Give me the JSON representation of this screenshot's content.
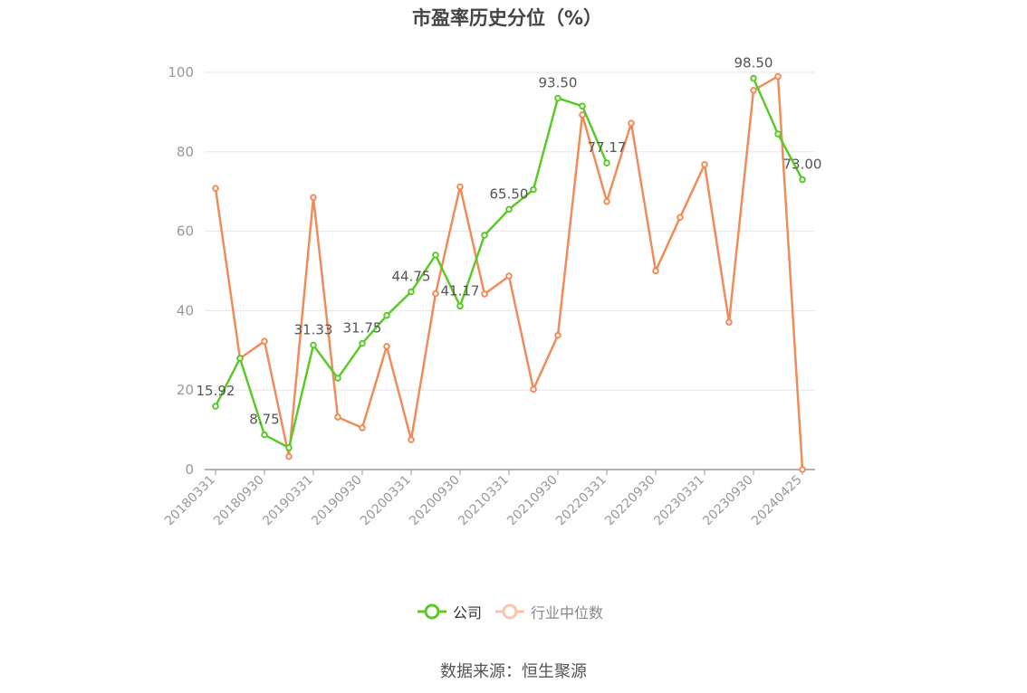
{
  "chart_data": {
    "type": "line",
    "title": "市盈率历史分位（%）",
    "xlabel": "",
    "ylabel": "",
    "ylim": [
      0,
      100
    ],
    "yticks": [
      0,
      20,
      40,
      60,
      80,
      100
    ],
    "grid": true,
    "legend_position": "bottom",
    "x": [
      "20180331",
      "20180630",
      "20180930",
      "20181231",
      "20190331",
      "20190630",
      "20190930",
      "20191231",
      "20200331",
      "20200630",
      "20200930",
      "20201231",
      "20210331",
      "20210630",
      "20210930",
      "20211231",
      "20220331",
      "20220630",
      "20220930",
      "20221231",
      "20230331",
      "20230630",
      "20230930",
      "20231231",
      "20240425"
    ],
    "xtick_labels": [
      "20180331",
      "20180930",
      "20190331",
      "20190930",
      "20200331",
      "20200930",
      "20210331",
      "20210930",
      "20220331",
      "20220930",
      "20230331",
      "20230930",
      "20240425"
    ],
    "series": [
      {
        "name": "公司",
        "color": "#5cc92b",
        "values": [
          15.92,
          28.0,
          8.75,
          5.5,
          31.33,
          23.0,
          31.75,
          38.8,
          44.75,
          54.0,
          41.17,
          59.0,
          65.5,
          70.5,
          93.5,
          91.5,
          77.17,
          null,
          null,
          null,
          null,
          null,
          98.5,
          84.5,
          73.0
        ],
        "data_labels": [
          {
            "x": "20180331",
            "text": "15.92"
          },
          {
            "x": "20180930",
            "text": "8.75"
          },
          {
            "x": "20190331",
            "text": "31.33"
          },
          {
            "x": "20190930",
            "text": "31.75"
          },
          {
            "x": "20200331",
            "text": "44.75"
          },
          {
            "x": "20200930",
            "text": "41.17"
          },
          {
            "x": "20210331",
            "text": "65.50"
          },
          {
            "x": "20210930",
            "text": "93.50"
          },
          {
            "x": "20220331",
            "text": "77.17"
          },
          {
            "x": "20230930",
            "text": "98.50"
          },
          {
            "x": "20240425",
            "text": "73.00"
          }
        ]
      },
      {
        "name": "行业中位数",
        "color": "#f08c5a",
        "values": [
          70.8,
          28.0,
          32.3,
          3.3,
          68.5,
          13.2,
          10.5,
          31.0,
          7.5,
          44.3,
          71.2,
          44.2,
          48.7,
          20.2,
          33.8,
          89.3,
          67.5,
          87.2,
          50.0,
          63.5,
          76.8,
          37.1,
          95.5,
          99.0,
          0.0
        ]
      }
    ]
  },
  "legend": {
    "company_label": "公司",
    "industry_label": "行业中位数"
  },
  "source_text": "数据来源：恒生聚源"
}
